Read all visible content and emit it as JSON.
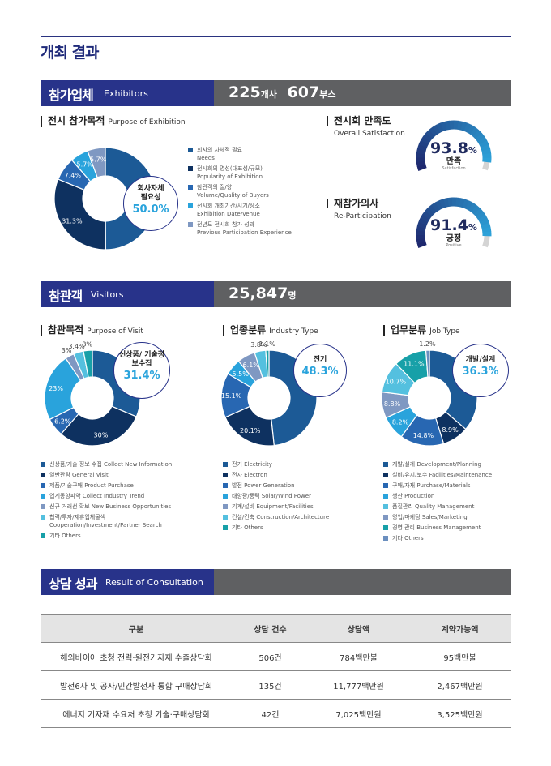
{
  "page_title": "개최 결과",
  "exhibitors": {
    "title_ko": "참가업체",
    "title_en": "Exhibitors",
    "count1": "225",
    "unit1": "개사",
    "count2": "607",
    "unit2": "부스",
    "purpose": {
      "title_ko": "전시 참가목적",
      "title_en": "Purpose of Exhibition",
      "callout_label": "회사자체 필요성",
      "callout_value": "50.0%",
      "legend": [
        {
          "ko": "회사의 자체적 필요",
          "en": "Needs",
          "color": "#1c5a96"
        },
        {
          "ko": "전시회의 명성(대표성/규모)",
          "en": "Popularity of Exhibition",
          "color": "#0e3160"
        },
        {
          "ko": "참관객의 질/양",
          "en": "Volume/Quality of Buyers",
          "color": "#2867b2"
        },
        {
          "ko": "전시회 개최기간/시기/장소",
          "en": "Exhibition Date/Venue",
          "color": "#29a3dc"
        },
        {
          "ko": "전년도 전시회 참가 성과",
          "en": "Previous Participation Experience",
          "color": "#7f98c2"
        }
      ]
    },
    "satisfaction": {
      "title_ko": "전시회 만족도",
      "title_en": "Overall Satisfaction",
      "value": "93.8",
      "pct": "%",
      "label_ko": "만족",
      "label_en": "Satisfaction"
    },
    "reparticipation": {
      "title_ko": "재참가의사",
      "title_en": "Re-Participation",
      "value": "91.4",
      "pct": "%",
      "label_ko": "긍정",
      "label_en": "Positive"
    }
  },
  "visitors": {
    "title_ko": "참관객",
    "title_en": "Visitors",
    "count": "25,847",
    "unit": "명",
    "purpose": {
      "title_ko": "참관목적",
      "title_en": "Purpose of Visit",
      "callout_label": "신상품/ 기술정보수집",
      "callout_value": "31.4%",
      "legend": [
        {
          "text": "신상품/기술 정보 수집  Collect New Information",
          "color": "#1c5a96"
        },
        {
          "text": "일반관람  General Visit",
          "color": "#0e3160"
        },
        {
          "text": "제품/기술구매  Product Purchase",
          "color": "#2867b2"
        },
        {
          "text": "업계동향파악  Collect Industry Trend",
          "color": "#29a3dc"
        },
        {
          "text": "신규 거래선 확보  New Business Opportunities",
          "color": "#7f98c2"
        },
        {
          "text": "협력/투자/제휴업체물색",
          "text2": "Cooperation/Investment/Partner Search",
          "color": "#54c0df"
        },
        {
          "text": "기타  Others",
          "color": "#17a0a8"
        }
      ]
    },
    "industry": {
      "title_ko": "업종분류",
      "title_en": "Industry Type",
      "callout_label": "전기",
      "callout_value": "48.3%",
      "legend": [
        {
          "text": "전기  Electricity",
          "color": "#1c5a96"
        },
        {
          "text": "전자  Electron",
          "color": "#0e3160"
        },
        {
          "text": "발전  Power Generation",
          "color": "#2867b2"
        },
        {
          "text": "태양광/풍력  Solar/Wind Power",
          "color": "#29a3dc"
        },
        {
          "text": "기계/설비  Equipment/Facilities",
          "color": "#7f98c2"
        },
        {
          "text": "건설/건축  Construction/Architecture",
          "color": "#54c0df"
        },
        {
          "text": "기타  Others",
          "color": "#17a0a8"
        }
      ]
    },
    "job": {
      "title_ko": "업무분류",
      "title_en": "Job Type",
      "callout_label": "개발/설계",
      "callout_value": "36.3%",
      "legend": [
        {
          "text": "개발/설계  Development/Planning",
          "color": "#1c5a96"
        },
        {
          "text": "설비/유지/보수  Facilities/Maintenance",
          "color": "#0e3160"
        },
        {
          "text": "구매/자재  Purchase/Materials",
          "color": "#2867b2"
        },
        {
          "text": "생산  Production",
          "color": "#29a3dc"
        },
        {
          "text": "품질관리  Quality Management",
          "color": "#54c0df"
        },
        {
          "text": "영업/마케팅  Sales/Marketing",
          "color": "#7f98c2"
        },
        {
          "text": "경영 관리  Business Management",
          "color": "#17a0a8"
        },
        {
          "text": "기타  Others",
          "color": "#6b8fbf"
        }
      ]
    }
  },
  "consultation": {
    "title_ko": "상담 성과",
    "title_en": "Result of Consultation",
    "headers": [
      "구분",
      "상담 건수",
      "상담액",
      "계약가능액"
    ],
    "rows": [
      [
        "해외바이어 초청 전력·원전기자재 수출상담회",
        "506건",
        "784백만불",
        "95백만불"
      ],
      [
        "발전6사 및 공사/민간발전사 통합 구매상담회",
        "135건",
        "11,777백만원",
        "2,467백만원"
      ],
      [
        "에너지 기자재 수요처 초청 기술·구매상담회",
        "42건",
        "7,025백만원",
        "3,525백만원"
      ]
    ]
  },
  "chart_data": [
    {
      "type": "pie",
      "title": "전시 참가목적 Purpose of Exhibition",
      "categories": [
        "회사의 자체적 필요",
        "전시회의 명성(대표성/규모)",
        "참관객의 질/양",
        "전시회 개최기간/시기/장소",
        "전년도 전시회 참가 성과"
      ],
      "values": [
        50.0,
        31.3,
        7.4,
        5.7,
        5.7
      ],
      "labels": [
        "",
        "31.3%",
        "7.4%",
        "5.7%",
        "5.7%"
      ],
      "colors": [
        "#1c5a96",
        "#0e3160",
        "#2867b2",
        "#29a3dc",
        "#7f98c2"
      ]
    },
    {
      "type": "gauge",
      "title": "전시회 만족도 Overall Satisfaction",
      "value": 93.8
    },
    {
      "type": "gauge",
      "title": "재참가의사 Re-Participation",
      "value": 91.4
    },
    {
      "type": "pie",
      "title": "참관목적 Purpose of Visit",
      "categories": [
        "신상품/기술 정보 수집",
        "일반관람",
        "제품/기술구매",
        "업계동향파악",
        "신규 거래선 확보",
        "협력/투자/제휴업체물색",
        "기타"
      ],
      "values": [
        31.4,
        30,
        6.2,
        23,
        3,
        3.4,
        3
      ],
      "labels": [
        "",
        "30%",
        "6.2%",
        "23%",
        "3%",
        "3.4%",
        "3%"
      ],
      "colors": [
        "#1c5a96",
        "#0e3160",
        "#2867b2",
        "#29a3dc",
        "#7f98c2",
        "#54c0df",
        "#17a0a8"
      ]
    },
    {
      "type": "pie",
      "title": "업종분류 Industry Type",
      "categories": [
        "전기",
        "전자",
        "발전",
        "태양광/풍력",
        "기계/설비",
        "건설/건축",
        "기타"
      ],
      "values": [
        48.3,
        20.1,
        15.1,
        5.5,
        6.1,
        3.8,
        1.1
      ],
      "labels": [
        "",
        "20.1%",
        "15.1%",
        "5.5%",
        "6.1%",
        "3.8%",
        "1.1%"
      ],
      "colors": [
        "#1c5a96",
        "#0e3160",
        "#2867b2",
        "#29a3dc",
        "#7f98c2",
        "#54c0df",
        "#17a0a8"
      ]
    },
    {
      "type": "pie",
      "title": "업무분류 Job Type",
      "categories": [
        "개발/설계",
        "설비/유지/보수",
        "구매/자재",
        "생산",
        "품질관리",
        "영업/마케팅",
        "경영 관리",
        "기타"
      ],
      "values": [
        36.3,
        8.9,
        14.8,
        8.2,
        8.8,
        10.7,
        11.1,
        1.2
      ],
      "labels": [
        "",
        "8.9%",
        "14.8%",
        "8.2%",
        "8.8%",
        "10.7%",
        "11.1%",
        "1.2%"
      ],
      "colors": [
        "#1c5a96",
        "#0e3160",
        "#2867b2",
        "#29a3dc",
        "#7f98c2",
        "#54c0df",
        "#17a0a8",
        "#6b8fbf"
      ]
    }
  ]
}
